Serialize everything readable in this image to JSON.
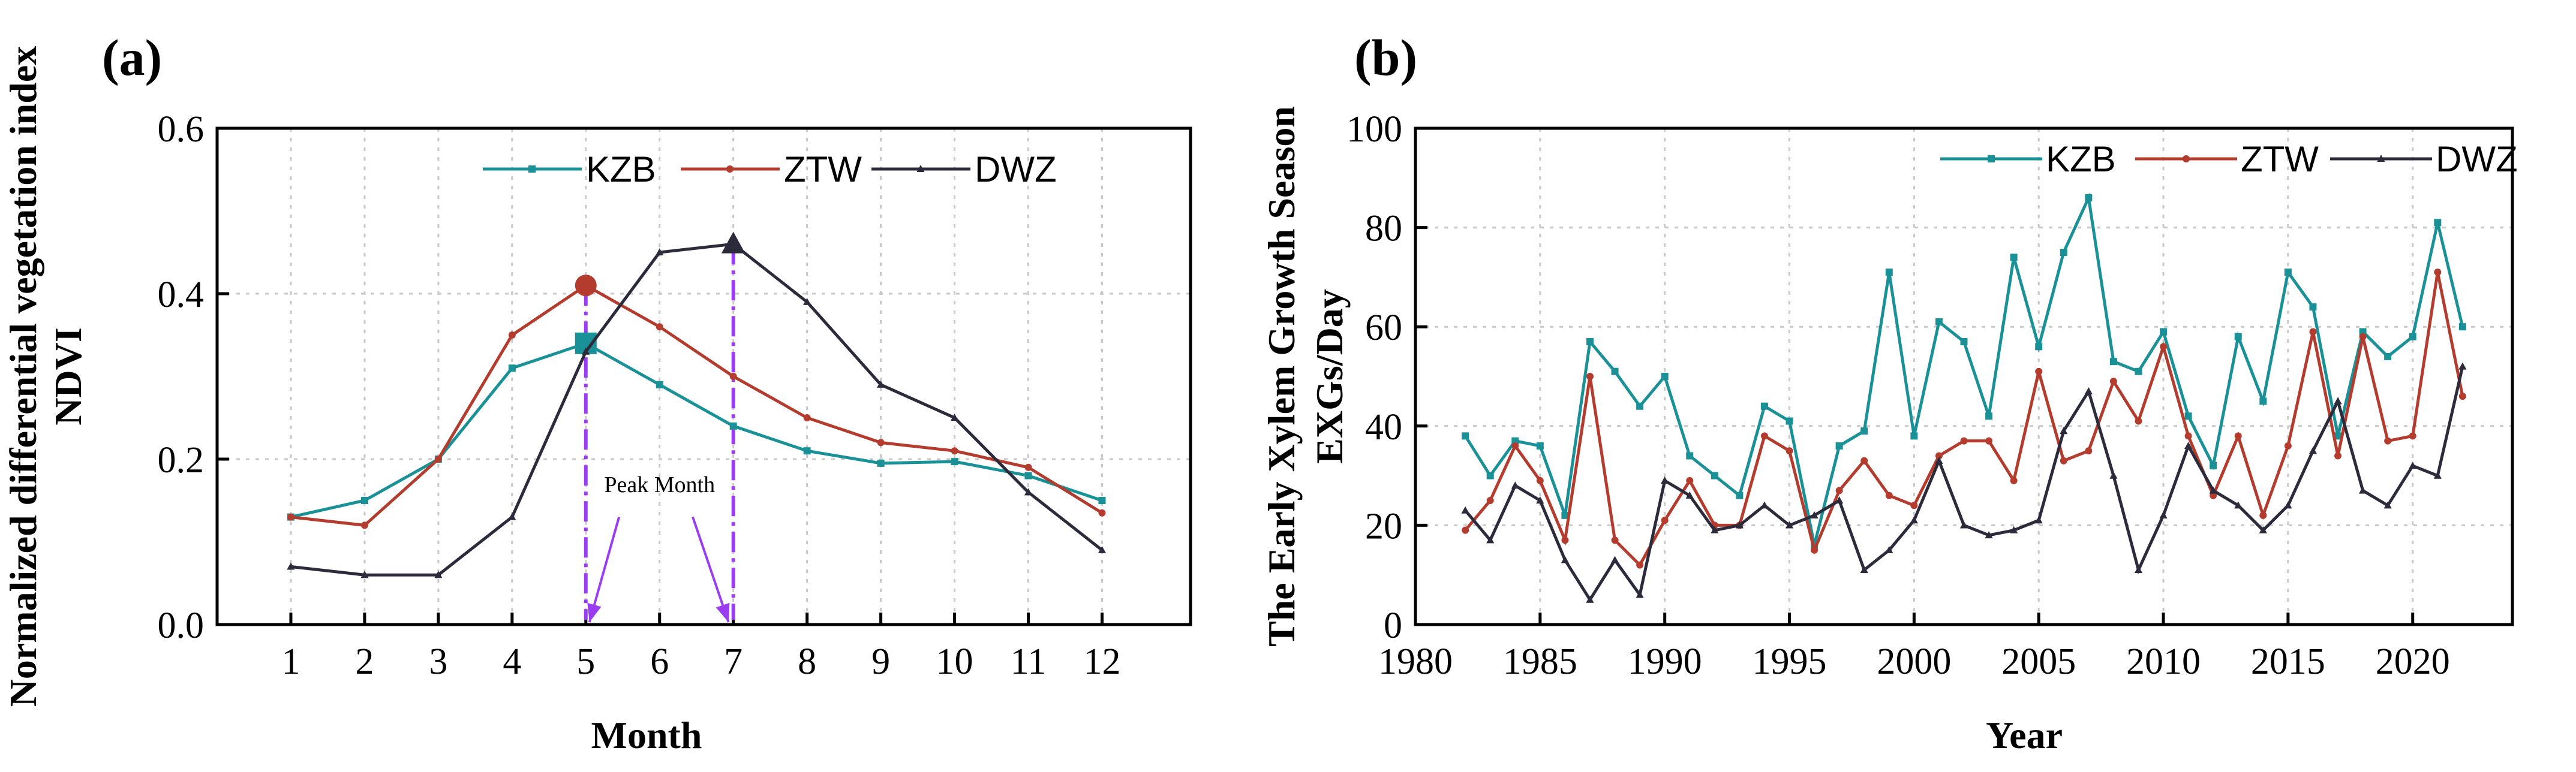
{
  "colors": {
    "KZB": "#1a9196",
    "ZTW": "#b43c2e",
    "DWZ": "#2b2b3c",
    "peak": "#9a3cf0"
  },
  "chart_data": [
    {
      "panel": "(a)",
      "type": "line",
      "title": "",
      "ylabel_line1": "Normalized differential vegetation index",
      "ylabel_line2": "NDVI",
      "xlabel": "Month",
      "x": [
        1,
        2,
        3,
        4,
        5,
        6,
        7,
        8,
        9,
        10,
        11,
        12
      ],
      "xlim": [
        0,
        13.2
      ],
      "ylim": [
        0,
        0.6
      ],
      "yticks": [
        0.0,
        0.2,
        0.4,
        0.6
      ],
      "ytick_labels": [
        "0.0",
        "0.2",
        "0.4",
        "0.6"
      ],
      "grid": true,
      "legend_position": "top-right",
      "series": [
        {
          "name": "KZB",
          "marker": "square",
          "values": [
            0.13,
            0.15,
            0.2,
            0.31,
            0.34,
            0.29,
            0.24,
            0.21,
            0.195,
            0.197,
            0.18,
            0.15
          ]
        },
        {
          "name": "ZTW",
          "marker": "circle",
          "values": [
            0.13,
            0.12,
            0.2,
            0.35,
            0.41,
            0.36,
            0.3,
            0.25,
            0.22,
            0.21,
            0.19,
            0.135
          ]
        },
        {
          "name": "DWZ",
          "marker": "triangle",
          "values": [
            0.07,
            0.06,
            0.06,
            0.13,
            0.33,
            0.45,
            0.46,
            0.39,
            0.29,
            0.25,
            0.16,
            0.09
          ]
        }
      ],
      "annotations": {
        "text": "Peak Month",
        "peak_months": [
          5,
          7
        ]
      }
    },
    {
      "panel": "(b)",
      "type": "line",
      "title": "",
      "ylabel_line1": "The Early Xylem Growth Season",
      "ylabel_line2": "EXGs/Day",
      "xlabel": "Year",
      "x": [
        1982,
        1983,
        1984,
        1985,
        1986,
        1987,
        1988,
        1989,
        1990,
        1991,
        1992,
        1993,
        1994,
        1995,
        1996,
        1997,
        1998,
        1999,
        2000,
        2001,
        2002,
        2003,
        2004,
        2005,
        2006,
        2007,
        2008,
        2009,
        2010,
        2011,
        2012,
        2013,
        2014,
        2015,
        2016,
        2017,
        2018,
        2019,
        2020,
        2021,
        2022
      ],
      "xlim": [
        1980,
        2024
      ],
      "xticks": [
        1980,
        1985,
        1990,
        1995,
        2000,
        2005,
        2010,
        2015,
        2020
      ],
      "ylim": [
        0,
        100
      ],
      "yticks": [
        0,
        20,
        40,
        60,
        80,
        100
      ],
      "grid": true,
      "legend_position": "top-right",
      "series": [
        {
          "name": "KZB",
          "marker": "square",
          "values": [
            38,
            30,
            37,
            36,
            22,
            57,
            51,
            44,
            50,
            34,
            30,
            26,
            44,
            41,
            16,
            36,
            39,
            71,
            38,
            61,
            57,
            42,
            74,
            56,
            75,
            86,
            53,
            51,
            59,
            42,
            32,
            58,
            45,
            71,
            64,
            38,
            59,
            54,
            58,
            81,
            60
          ]
        },
        {
          "name": "ZTW",
          "marker": "circle",
          "values": [
            19,
            25,
            36,
            29,
            17,
            50,
            17,
            12,
            21,
            29,
            20,
            20,
            38,
            35,
            15,
            27,
            33,
            26,
            24,
            34,
            37,
            37,
            29,
            51,
            33,
            35,
            49,
            41,
            56,
            38,
            26,
            38,
            22,
            36,
            59,
            34,
            58,
            37,
            38,
            71,
            46
          ]
        },
        {
          "name": "DWZ",
          "marker": "triangle",
          "values": [
            23,
            17,
            28,
            25,
            13,
            5,
            13,
            6,
            29,
            26,
            19,
            20,
            24,
            20,
            22,
            25,
            11,
            15,
            21,
            33,
            20,
            18,
            19,
            21,
            39,
            47,
            30,
            11,
            22,
            36,
            27,
            24,
            19,
            24,
            35,
            45,
            27,
            24,
            32,
            30,
            52
          ]
        }
      ]
    }
  ]
}
